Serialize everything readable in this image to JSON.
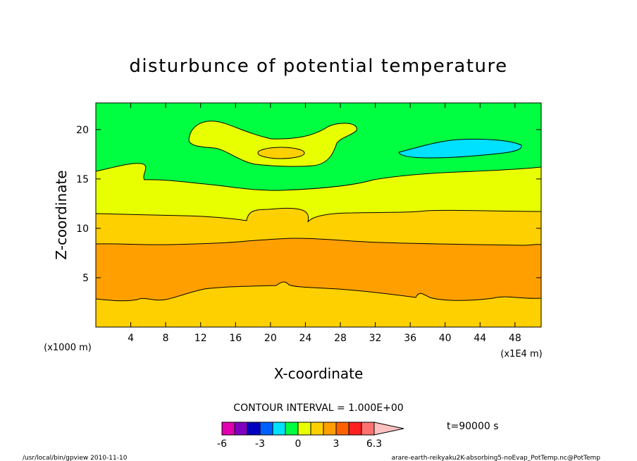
{
  "chart_data": {
    "type": "contour",
    "title": "disturbunce of potential temperature",
    "xlabel": "X-coordinate",
    "ylabel": "Z-coordinate",
    "x_unit": "(x1E4 m)",
    "y_unit": "(x1000 m)",
    "xlim": [
      0,
      51
    ],
    "ylim": [
      0,
      22.7
    ],
    "x_ticks": [
      4,
      8,
      12,
      16,
      20,
      24,
      28,
      32,
      36,
      40,
      44,
      48
    ],
    "y_ticks": [
      5,
      10,
      15,
      20
    ],
    "contour_interval": "CONTOUR INTERVAL = 1.000E+00",
    "time_label": "t=90000 s",
    "colorbar": {
      "tick_labels": [
        "-6",
        "-3",
        "0",
        "3",
        "6.3"
      ],
      "colors": [
        "#e000b0",
        "#8000c0",
        "#0000c0",
        "#0060ff",
        "#00e0ff",
        "#00ff40",
        "#e8ff00",
        "#ffd000",
        "#ffa000",
        "#ff6000",
        "#ff2020",
        "#ff7070",
        "#ffc0c0"
      ]
    },
    "regions": [
      {
        "level": "3 to 4",
        "color": "#ffa000",
        "description": "band approx z 3 to 8.5"
      },
      {
        "level": "2 to 3",
        "color": "#ffd000",
        "description": "bottom layer and band approx z 8.5 to 11.5"
      },
      {
        "level": "1 to 2",
        "color": "#e8ff00",
        "description": "band approx z 11.5 to 15.5, island near z 17-20"
      },
      {
        "level": "0 to 1",
        "color": "#00ff40",
        "description": "upper layer above z 15.5"
      },
      {
        "level": "-2 to -1",
        "color": "#00e0ff",
        "description": "small patch near x 35-48, z 17.5-18.5"
      }
    ]
  },
  "footer": {
    "left": "/usr/local/bin/gpview  2010-11-10",
    "right": "arare-earth-reikyaku2K-absorbing5-noEvap_PotTemp.nc@PotTemp"
  }
}
